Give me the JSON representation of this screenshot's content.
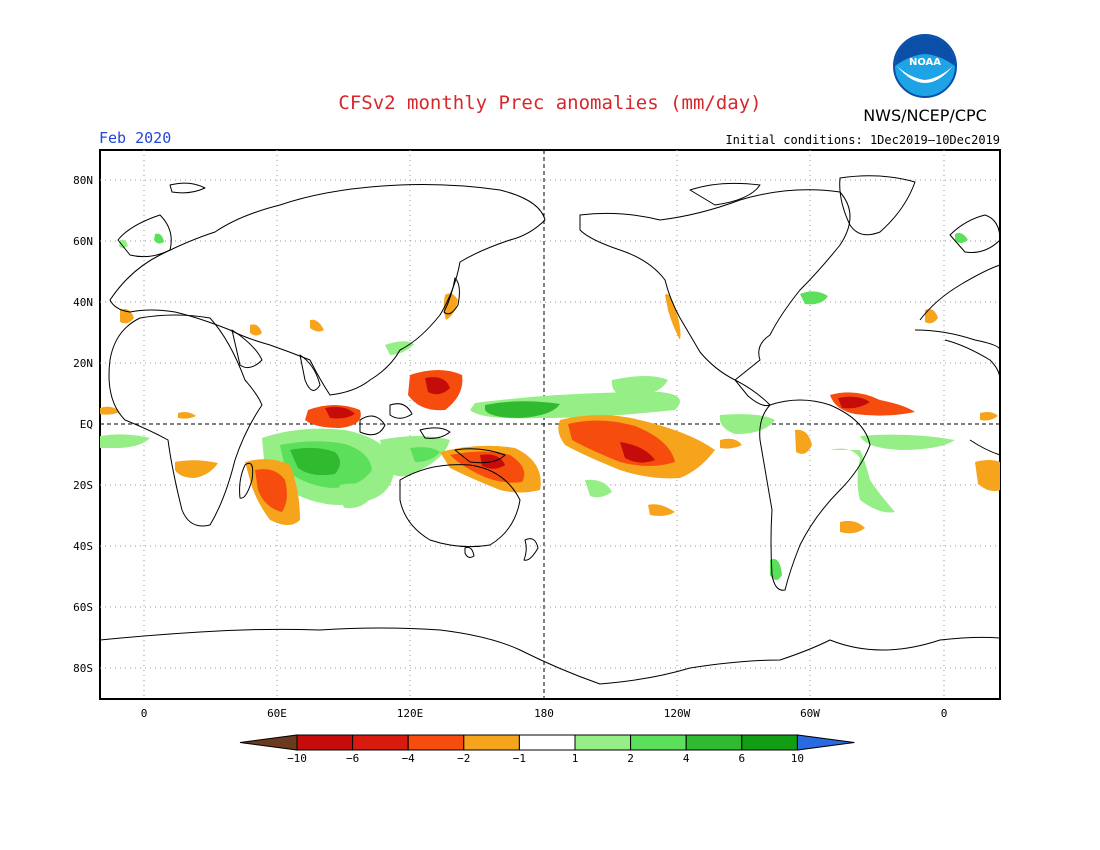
{
  "header": {
    "title": "CFSv2 monthly Prec anomalies (mm/day)",
    "valid_month": "Feb 2020",
    "initial_conditions": "Initial conditions: 1Dec2019–10Dec2019",
    "agency": "NWS/NCEP/CPC",
    "logo_text": "NOAA"
  },
  "map": {
    "lat_ticks": [
      "80N",
      "60N",
      "40N",
      "20N",
      "EQ",
      "20S",
      "40S",
      "60S",
      "80S"
    ],
    "lon_ticks": [
      "0",
      "60E",
      "120E",
      "180",
      "120W",
      "60W",
      "0"
    ]
  },
  "colorbar": {
    "labels": [
      "−10",
      "−6",
      "−4",
      "−2",
      "−1",
      "1",
      "2",
      "4",
      "6",
      "10"
    ],
    "colors": [
      "#6b3a1e",
      "#c60b0b",
      "#d91a0f",
      "#f64d0f",
      "#f7a41d",
      "#ffffff",
      "#95ef86",
      "#5ce05c",
      "#2fba2f",
      "#129e12",
      "#2a6ae1"
    ]
  }
}
